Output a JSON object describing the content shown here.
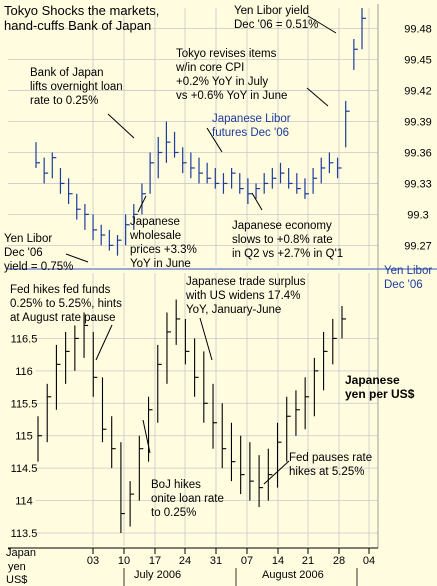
{
  "chart_data": [
    {
      "type": "ohlc",
      "title": "Tokyo Shocks the markets, hand-cuffs Bank of Japan",
      "series_name": "Japanese Libor futures Dec '06",
      "right_label": "Yen Libor Dec '06",
      "ylim": [
        99.25,
        99.5
      ],
      "yticks": [
        "99.48",
        "99.45",
        "99.42",
        "99.39",
        "99.36",
        "99.33",
        "99.3",
        "99.27"
      ],
      "series": [
        {
          "name": "Japanese Libor futures Dec '06",
          "bars": [
            [
              99.37,
              99.345,
              99.35
            ],
            [
              99.355,
              99.33,
              99.34
            ],
            [
              99.36,
              99.335,
              99.355
            ],
            [
              99.345,
              99.32,
              99.33
            ],
            [
              99.335,
              99.31,
              99.32
            ],
            [
              99.32,
              99.295,
              99.305
            ],
            [
              99.31,
              99.285,
              99.3
            ],
            [
              99.3,
              99.275,
              99.285
            ],
            [
              99.29,
              99.27,
              99.28
            ],
            [
              99.285,
              99.265,
              99.27
            ],
            [
              99.28,
              99.26,
              99.275
            ],
            [
              99.3,
              99.27,
              99.29
            ],
            [
              99.31,
              99.285,
              99.3
            ],
            [
              99.33,
              99.3,
              99.32
            ],
            [
              99.36,
              99.32,
              99.35
            ],
            [
              99.375,
              99.335,
              99.36
            ],
            [
              99.39,
              99.35,
              99.37
            ],
            [
              99.38,
              99.355,
              99.36
            ],
            [
              99.365,
              99.34,
              99.35
            ],
            [
              99.36,
              99.335,
              99.345
            ],
            [
              99.355,
              99.33,
              99.34
            ],
            [
              99.35,
              99.33,
              99.335
            ],
            [
              99.345,
              99.325,
              99.33
            ],
            [
              99.34,
              99.32,
              99.33
            ],
            [
              99.345,
              99.325,
              99.34
            ],
            [
              99.34,
              99.32,
              99.325
            ],
            [
              99.335,
              99.31,
              99.32
            ],
            [
              99.33,
              99.315,
              99.325
            ],
            [
              99.34,
              99.32,
              99.33
            ],
            [
              99.345,
              99.325,
              99.335
            ],
            [
              99.35,
              99.33,
              99.34
            ],
            [
              99.345,
              99.325,
              99.33
            ],
            [
              99.34,
              99.32,
              99.325
            ],
            [
              99.335,
              99.315,
              99.32
            ],
            [
              99.345,
              99.32,
              99.335
            ],
            [
              99.355,
              99.33,
              99.345
            ],
            [
              99.36,
              99.34,
              99.35
            ],
            [
              99.355,
              99.335,
              99.345
            ],
            [
              99.41,
              99.365,
              99.4
            ],
            [
              99.47,
              99.44,
              99.46
            ],
            [
              99.5,
              99.46,
              99.49
            ]
          ]
        }
      ],
      "annotations": [
        "Yen Libor yield Dec '06 = 0.51%",
        "Tokyo revises items w/in core CPI +0.2% YoY in July vs +0.6% YoY in June",
        "Bank of Japan lifts overnight loan rate to 0.25%",
        "Japanese wholesale prices +3.3% YoY in June",
        "Japanese economy slows to +0.8% rate in Q2 vs +2.7% in Q'1",
        "Yen Libor Dec '06 yield = 0.75%"
      ]
    },
    {
      "type": "ohlc",
      "series_name": "Japanese yen per US$",
      "ylim": [
        113.3,
        117.2
      ],
      "yticks": [
        "116.5",
        "116",
        "115.5",
        "115",
        "114.5",
        "114",
        "113.5"
      ],
      "xlabel": "July 2006 / August 2006",
      "x_ticks": [
        "03",
        "10",
        "17",
        "24",
        "31",
        "07",
        "14",
        "21",
        "28",
        "04"
      ],
      "y_unit": "Japan yen per US$",
      "series": [
        {
          "name": "Japanese yen per US$",
          "bars": [
            [
              115.3,
              114.6,
              115.0
            ],
            [
              115.8,
              114.9,
              115.6
            ],
            [
              116.4,
              115.4,
              116.1
            ],
            [
              116.6,
              115.8,
              116.3
            ],
            [
              116.7,
              116.0,
              116.5
            ],
            [
              116.9,
              116.2,
              116.7
            ],
            [
              116.6,
              115.6,
              115.9
            ],
            [
              115.9,
              114.9,
              115.1
            ],
            [
              115.3,
              114.5,
              114.8
            ],
            [
              114.9,
              113.5,
              113.8
            ],
            [
              114.3,
              113.6,
              114.1
            ],
            [
              115.0,
              114.0,
              114.8
            ],
            [
              115.6,
              114.6,
              115.4
            ],
            [
              116.4,
              115.2,
              116.1
            ],
            [
              116.9,
              115.8,
              116.6
            ],
            [
              117.1,
              116.4,
              116.8
            ],
            [
              116.8,
              116.1,
              116.3
            ],
            [
              116.5,
              115.6,
              115.9
            ],
            [
              116.3,
              115.2,
              115.5
            ],
            [
              115.8,
              114.8,
              115.2
            ],
            [
              115.5,
              114.5,
              114.8
            ],
            [
              115.2,
              114.3,
              114.6
            ],
            [
              115.0,
              114.1,
              114.4
            ],
            [
              114.9,
              114.0,
              114.3
            ],
            [
              114.7,
              113.9,
              114.2
            ],
            [
              114.8,
              114.0,
              114.4
            ],
            [
              115.2,
              114.2,
              114.9
            ],
            [
              115.6,
              114.6,
              115.3
            ],
            [
              115.7,
              115.0,
              115.4
            ],
            [
              115.9,
              115.1,
              115.6
            ],
            [
              116.2,
              115.3,
              116.0
            ],
            [
              116.6,
              115.7,
              116.3
            ],
            [
              116.8,
              116.1,
              116.5
            ],
            [
              117.0,
              116.5,
              116.8
            ]
          ]
        }
      ],
      "annotations": [
        "Fed hikes fed funds 0.25% to 5.25%, hints at August rate pause",
        "Japanese trade surplus with US widens 17.4% YoY, January-June",
        "BoJ hikes onite loan rate to 0.25%",
        "Fed pauses rate hikes at 5.25%"
      ]
    }
  ],
  "text": {
    "title_line1": "Tokyo Shocks the markets,",
    "title_line2": "hand-cuffs Bank of Japan",
    "libor_yield_top_1": "Yen Libor yield",
    "libor_yield_top_2": "Dec '06 = 0.51%",
    "cpi_1": "Tokyo revises items",
    "cpi_2": "w/in core CPI",
    "cpi_3": "+0.2% YoY in July",
    "cpi_4": "vs +0.6% YoY in June",
    "boj_1": "Bank of Japan",
    "boj_2": "lifts overnight loan",
    "boj_3": "rate to 0.25%",
    "futures_1": "Japanese Libor",
    "futures_2": "futures Dec '06",
    "wpi_1": "Japanese",
    "wpi_2": "wholesale",
    "wpi_3": "prices +3.3%",
    "wpi_4": "YoY in June",
    "econ_1": "Japanese economy",
    "econ_2": "slows to +0.8% rate",
    "econ_3": "in Q2 vs +2.7% in Q'1",
    "libor_low_1": "Yen Libor",
    "libor_low_2": "Dec '06",
    "libor_low_3": "yield = 0.75%",
    "libor_right_1": "Yen Libor",
    "libor_right_2": "Dec '06",
    "fed_1": "Fed hikes fed funds",
    "fed_2": "0.25% to 5.25%, hints",
    "fed_3": "at August rate pause",
    "trade_1": "Japanese trade surplus",
    "trade_2": "with US widens 17.4%",
    "trade_3": "YoY,  January-June",
    "yen_1": "Japanese",
    "yen_2": "yen per US$",
    "bojhike_1": "BoJ hikes",
    "bojhike_2": "onite loan rate",
    "bojhike_3": "to 0.25%",
    "fedpause_1": "Fed pauses rate",
    "fedpause_2": "hikes at 5.25%",
    "unit_1": "Japan",
    "unit_2": "yen",
    "unit_3": "US$",
    "month_july": "July 2006",
    "month_aug": "August 2006"
  },
  "colors": {
    "background": "#fffce0",
    "libor_bars": "#1e3c9c",
    "yen_bars": "#000000",
    "grid": "#c8c8c8",
    "divider": "#5a78c8"
  }
}
